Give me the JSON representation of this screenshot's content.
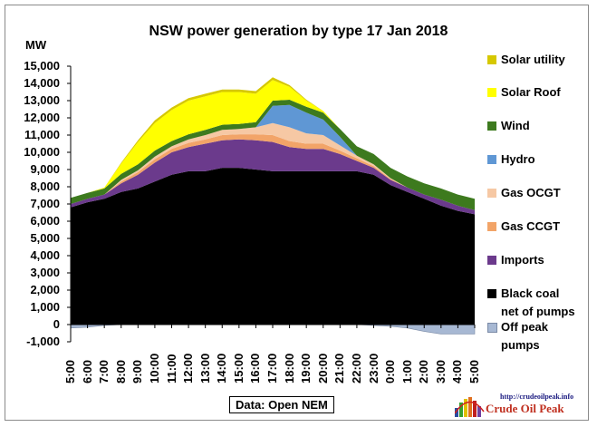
{
  "chart_data": {
    "type": "area",
    "stacked": true,
    "title": "NSW power generation by type 17 Jan 2018",
    "ylabel": "MW",
    "ylim": [
      -1000,
      15000
    ],
    "yticks": [
      "15,000",
      "14,000",
      "13,000",
      "12,000",
      "11,000",
      "10,000",
      "9,000",
      "8,000",
      "7,000",
      "6,000",
      "5,000",
      "4,000",
      "3,000",
      "2,000",
      "1,000",
      "0",
      "-1,000"
    ],
    "xlim": [
      "5:00",
      "5:00"
    ],
    "xticks": [
      "5:00",
      "6:00",
      "7:00",
      "8:00",
      "9:00",
      "10:00",
      "11:00",
      "12:00",
      "13:00",
      "14:00",
      "15:00",
      "16:00",
      "17:00",
      "18:00",
      "19:00",
      "20:00",
      "21:00",
      "22:00",
      "23:00",
      "0:00",
      "1:00",
      "2:00",
      "3:00",
      "4:00",
      "5:00"
    ],
    "x": [
      "5:00",
      "6:00",
      "7:00",
      "8:00",
      "9:00",
      "10:00",
      "11:00",
      "12:00",
      "13:00",
      "14:00",
      "15:00",
      "16:00",
      "17:00",
      "18:00",
      "19:00",
      "20:00",
      "21:00",
      "22:00",
      "23:00",
      "0:00",
      "1:00",
      "2:00",
      "3:00",
      "4:00",
      "5:00"
    ],
    "series": [
      {
        "name": "Black coal net of pumps",
        "color": "#000000",
        "values": [
          6800,
          7100,
          7300,
          7700,
          7900,
          8300,
          8700,
          8900,
          8900,
          9100,
          9100,
          9000,
          8900,
          8900,
          8900,
          8900,
          8900,
          8900,
          8700,
          8100,
          7700,
          7300,
          6900,
          6600,
          6400
        ]
      },
      {
        "name": "Imports",
        "color": "#6b3a8c",
        "values": [
          200,
          200,
          250,
          500,
          800,
          1100,
          1300,
          1400,
          1600,
          1600,
          1650,
          1700,
          1700,
          1400,
          1300,
          1300,
          1000,
          600,
          400,
          300,
          250,
          250,
          350,
          300,
          250
        ]
      },
      {
        "name": "Gas CCGT",
        "color": "#f2a468",
        "values": [
          0,
          0,
          0,
          100,
          150,
          200,
          200,
          250,
          250,
          300,
          300,
          350,
          400,
          350,
          300,
          300,
          200,
          150,
          100,
          50,
          0,
          0,
          0,
          0,
          0
        ]
      },
      {
        "name": "Gas OCGT",
        "color": "#f6c8a4",
        "values": [
          0,
          0,
          0,
          100,
          100,
          150,
          150,
          200,
          250,
          300,
          300,
          400,
          700,
          800,
          600,
          500,
          300,
          150,
          100,
          50,
          0,
          0,
          0,
          0,
          0
        ]
      },
      {
        "name": "Hydro",
        "color": "#5f97d4",
        "values": [
          0,
          0,
          0,
          0,
          0,
          0,
          0,
          0,
          0,
          0,
          0,
          0,
          1000,
          1300,
          1200,
          900,
          500,
          0,
          0,
          0,
          0,
          0,
          0,
          0,
          0
        ]
      },
      {
        "name": "Wind",
        "color": "#3d7a1e",
        "values": [
          350,
          350,
          350,
          350,
          350,
          350,
          300,
          300,
          300,
          300,
          300,
          300,
          300,
          300,
          350,
          400,
          450,
          550,
          600,
          600,
          650,
          650,
          650,
          650,
          650
        ]
      },
      {
        "name": "Solar Roof",
        "color": "#ffff00",
        "values": [
          0,
          0,
          50,
          600,
          1300,
          1600,
          1800,
          1950,
          1950,
          1900,
          1850,
          1650,
          1200,
          750,
          350,
          100,
          0,
          0,
          0,
          0,
          0,
          0,
          0,
          0,
          0
        ]
      },
      {
        "name": "Solar utility",
        "color": "#d6c800",
        "values": [
          0,
          0,
          0,
          50,
          100,
          150,
          150,
          150,
          150,
          150,
          150,
          150,
          150,
          100,
          50,
          0,
          0,
          0,
          0,
          0,
          0,
          0,
          0,
          0,
          0
        ]
      },
      {
        "name": "Off peak pumps",
        "color": "#a7b8d3",
        "values": [
          -200,
          -150,
          -50,
          0,
          0,
          0,
          0,
          0,
          0,
          0,
          0,
          0,
          0,
          0,
          0,
          0,
          0,
          0,
          -50,
          -100,
          -200,
          -400,
          -550,
          -550,
          -550
        ]
      }
    ],
    "legend_position": "right",
    "grid": false
  },
  "source_label": "Data: Open NEM",
  "logo": {
    "url": "http://crudeoilpeak.info",
    "name": "Crude Oil Peak"
  }
}
